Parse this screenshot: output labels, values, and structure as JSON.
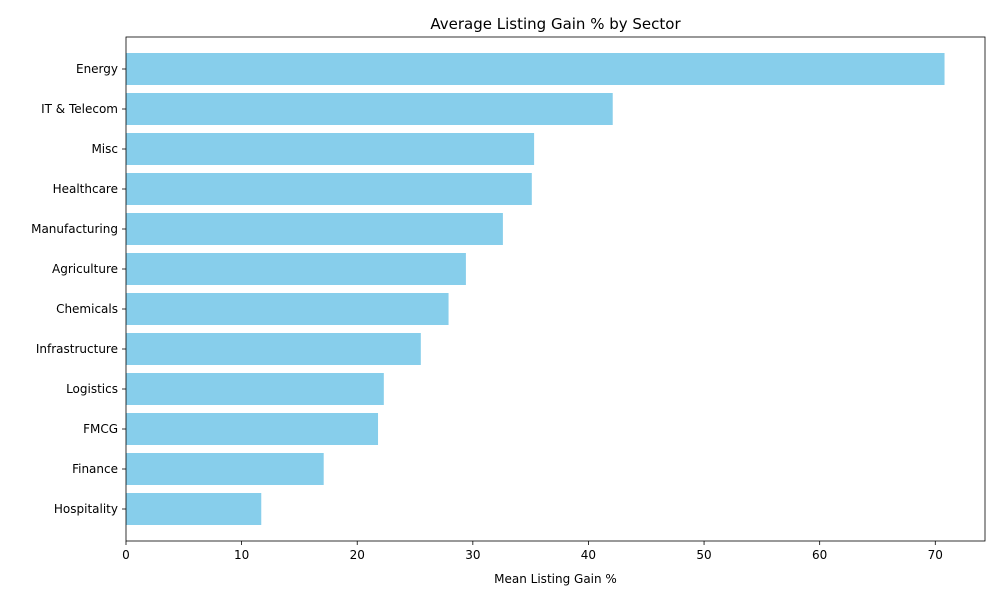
{
  "chart_data": {
    "type": "bar",
    "orientation": "horizontal",
    "title": "Average Listing Gain % by Sector",
    "xlabel": "Mean Listing Gain %",
    "ylabel": "",
    "categories": [
      "Energy",
      "IT & Telecom",
      "Misc",
      "Healthcare",
      "Manufacturing",
      "Agriculture",
      "Chemicals",
      "Infrastructure",
      "Logistics",
      "FMCG",
      "Finance",
      "Hospitality"
    ],
    "values": [
      70.8,
      42.1,
      35.3,
      35.1,
      32.6,
      29.4,
      27.9,
      25.5,
      22.3,
      21.8,
      17.1,
      11.7
    ],
    "xlim": [
      0,
      74.3
    ],
    "xticks": [
      0,
      10,
      20,
      30,
      40,
      50,
      60,
      70
    ],
    "bar_color": "#87CEEB",
    "grid": false,
    "legend": "none"
  }
}
